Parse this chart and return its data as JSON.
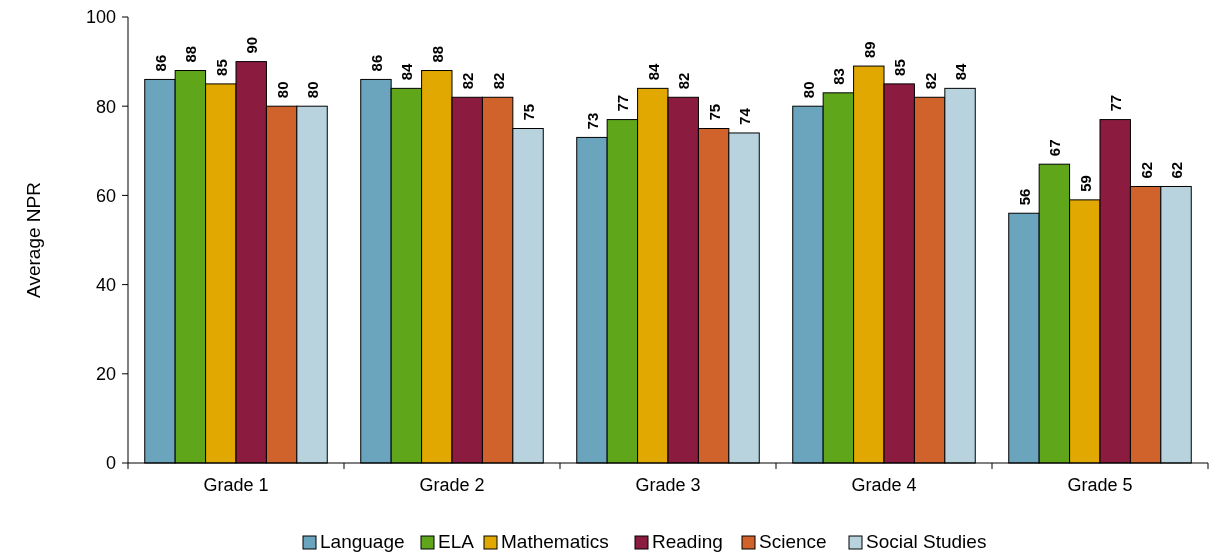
{
  "chart_data": {
    "type": "bar",
    "ylabel": "Average NPR",
    "categories": [
      "Grade 1",
      "Grade 2",
      "Grade 3",
      "Grade 4",
      "Grade 5"
    ],
    "series": [
      {
        "name": "Language",
        "color": "#6aa5bd",
        "values": [
          86,
          86,
          73,
          80,
          56
        ]
      },
      {
        "name": "ELA",
        "color": "#5fa61b",
        "values": [
          88,
          84,
          77,
          83,
          67
        ]
      },
      {
        "name": "Mathematics",
        "color": "#e0a800",
        "values": [
          85,
          88,
          84,
          89,
          59
        ]
      },
      {
        "name": "Reading",
        "color": "#8b1c40",
        "values": [
          90,
          82,
          82,
          85,
          77
        ]
      },
      {
        "name": "Science",
        "color": "#d0622c",
        "values": [
          80,
          82,
          75,
          82,
          62
        ]
      },
      {
        "name": "Social Studies",
        "color": "#b9d3de",
        "values": [
          80,
          75,
          74,
          84,
          62
        ]
      }
    ],
    "ylim": [
      0,
      100
    ],
    "yticks": [
      0,
      20,
      40,
      60,
      80,
      100
    ],
    "grid": false,
    "legend": "bottom",
    "data_labels": true
  }
}
